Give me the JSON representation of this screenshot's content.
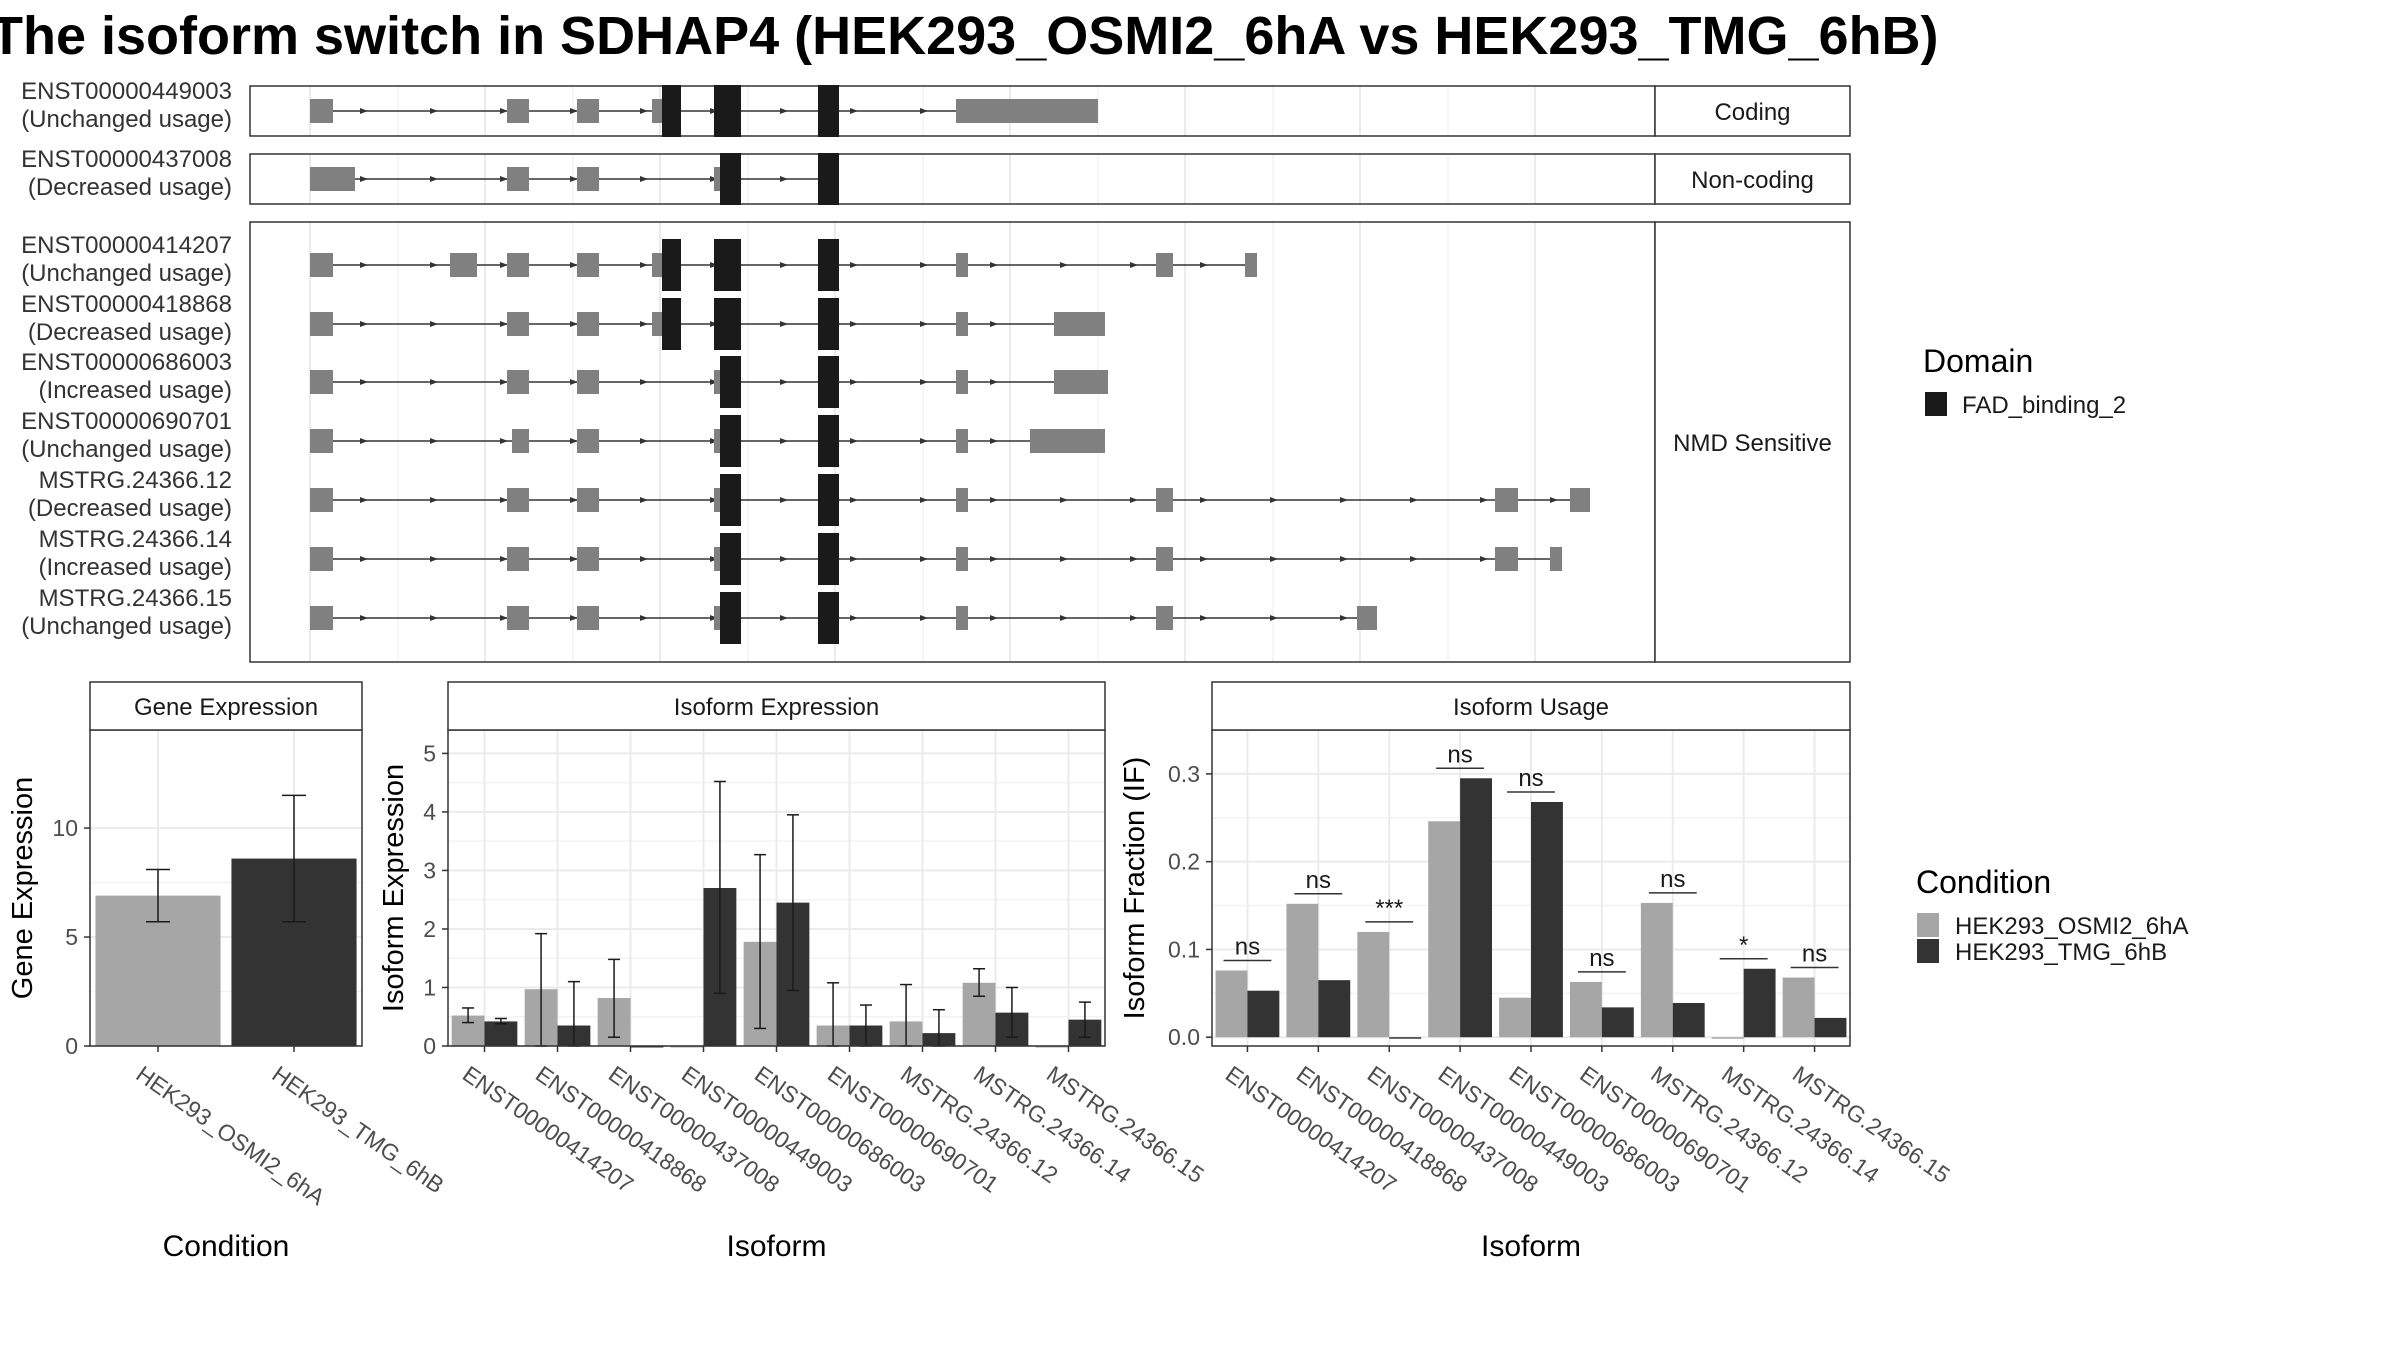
{
  "title": "The isoform switch in SDHAP4 (HEK293_OSMI2_6hA vs HEK293_TMG_6hB)",
  "colors": {
    "exon": "#808080",
    "domain": "#1a1a1a",
    "cond1": "#a6a6a6",
    "cond2": "#333333",
    "grid": "#ebebeb",
    "strip": "#ffffff"
  },
  "transcripts": {
    "groups": [
      {
        "label": "Coding",
        "rows": 1
      },
      {
        "label": "Non-coding",
        "rows": 1
      },
      {
        "label": "NMD Sensitive",
        "rows": 7
      }
    ],
    "isoforms": [
      {
        "id": "ENST00000449003",
        "usage": "(Unchanged usage)"
      },
      {
        "id": "ENST00000437008",
        "usage": "(Decreased usage)"
      },
      {
        "id": "ENST00000414207",
        "usage": "(Unchanged usage)"
      },
      {
        "id": "ENST00000418868",
        "usage": "(Decreased usage)"
      },
      {
        "id": "ENST00000686003",
        "usage": "(Increased usage)"
      },
      {
        "id": "ENST00000690701",
        "usage": "(Unchanged usage)"
      },
      {
        "id": "MSTRG.24366.12",
        "usage": "(Decreased usage)"
      },
      {
        "id": "MSTRG.24366.14",
        "usage": "(Increased usage)"
      },
      {
        "id": "MSTRG.24366.15",
        "usage": "(Unchanged usage)"
      }
    ]
  },
  "legend_domain": {
    "title": "Domain",
    "items": [
      "FAD_binding_2"
    ]
  },
  "legend_condition": {
    "title": "Condition",
    "items": [
      "HEK293_OSMI2_6hA",
      "HEK293_TMG_6hB"
    ]
  },
  "chart_data": [
    {
      "type": "bar",
      "title": "Gene Expression",
      "xlabel": "Condition",
      "ylabel": "Gene Expression",
      "categories": [
        "HEK293_OSMI2_6hA",
        "HEK293_TMG_6hB"
      ],
      "values": [
        6.9,
        8.6
      ],
      "ci_low": [
        5.7,
        5.7
      ],
      "ci_high": [
        8.1,
        11.5
      ],
      "ylim": [
        0,
        14.5
      ],
      "yticks": [
        0,
        5,
        10
      ]
    },
    {
      "type": "bar",
      "title": "Isoform Expression",
      "xlabel": "Isoform",
      "ylabel": "Isoform Expression",
      "categories": [
        "ENST00000414207",
        "ENST00000418868",
        "ENST00000437008",
        "ENST00000449003",
        "ENST00000686003",
        "ENST00000690701",
        "MSTRG.24366.12",
        "MSTRG.24366.14",
        "MSTRG.24366.15"
      ],
      "series": [
        {
          "name": "HEK293_OSMI2_6hA",
          "values": [
            0.52,
            0.97,
            0.82,
            0.0,
            1.78,
            0.35,
            0.42,
            1.08,
            0.0
          ],
          "ci_low": [
            0.4,
            0.0,
            0.15,
            0.0,
            0.3,
            0.0,
            0.0,
            0.85,
            0.0
          ],
          "ci_high": [
            0.65,
            1.92,
            1.48,
            0.0,
            3.27,
            1.08,
            1.05,
            1.32,
            0.0
          ]
        },
        {
          "name": "HEK293_TMG_6hB",
          "values": [
            0.42,
            0.35,
            0.0,
            2.7,
            2.45,
            0.35,
            0.22,
            0.57,
            0.45
          ],
          "ci_low": [
            0.38,
            0.0,
            0.0,
            0.9,
            0.95,
            0.0,
            0.0,
            0.15,
            0.15
          ],
          "ci_high": [
            0.47,
            1.1,
            0.0,
            4.52,
            3.95,
            0.7,
            0.62,
            1.0,
            0.75
          ]
        }
      ],
      "extra_points": [
        0.45,
        0.22
      ],
      "ylim": [
        0,
        5.4
      ],
      "yticks": [
        0,
        1,
        2,
        3,
        4,
        5
      ]
    },
    {
      "type": "bar",
      "title": "Isoform Usage",
      "xlabel": "Isoform",
      "ylabel": "Isoform Fraction (IF)",
      "categories": [
        "ENST00000414207",
        "ENST00000418868",
        "ENST00000437008",
        "ENST00000449003",
        "ENST00000686003",
        "ENST00000690701",
        "MSTRG.24366.12",
        "MSTRG.24366.14",
        "MSTRG.24366.15"
      ],
      "series": [
        {
          "name": "HEK293_OSMI2_6hA",
          "values": [
            0.076,
            0.152,
            0.12,
            0.246,
            0.045,
            0.063,
            0.153,
            0.0,
            0.068
          ]
        },
        {
          "name": "HEK293_TMG_6hB",
          "values": [
            0.053,
            0.065,
            0.0,
            0.295,
            0.268,
            0.034,
            0.039,
            0.078,
            0.022
          ]
        }
      ],
      "significance": [
        "ns",
        "ns",
        "***",
        "ns",
        "ns",
        "ns",
        "ns",
        "*",
        "ns"
      ],
      "ylim": [
        -0.01,
        0.35
      ],
      "yticks": [
        0.0,
        0.1,
        0.2,
        0.3
      ]
    }
  ]
}
